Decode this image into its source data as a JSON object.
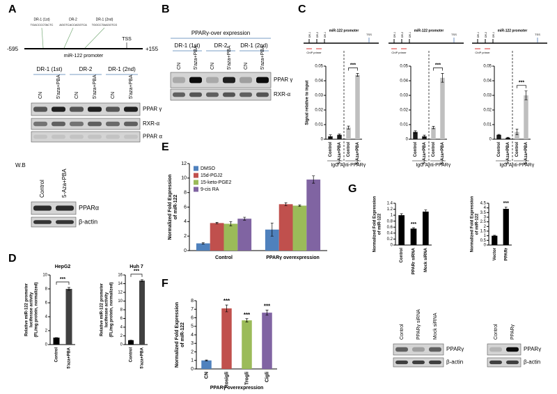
{
  "panel_labels": [
    "A",
    "B",
    "C",
    "D",
    "E",
    "F",
    "G"
  ],
  "promoter": {
    "label": "miR-122 promoter",
    "start": "-595",
    "end": "+155",
    "tss": "TSS",
    "sites": [
      {
        "name": "DR-1 (1st)",
        "seq": "TGACCCCTACTC"
      },
      {
        "name": "DR-2",
        "seq": "AGGTCACCAGGTCA"
      },
      {
        "name": "DR-1 (2nd)",
        "seq": "TGGCCTAAGGTCG"
      }
    ]
  },
  "blots": {
    "A": {
      "groups": [
        "DR-1 (1st)",
        "DR-2",
        "DR-1 (2nd)"
      ],
      "lanes": [
        "CN",
        "5'aza+PBA",
        "CN",
        "5'aza+PBA",
        "CN",
        "5'aza+PBA"
      ],
      "rows": [
        "PPAR γ",
        "RXR-α",
        "PPAR α"
      ]
    },
    "WB": {
      "label": "W.B",
      "lanes": [
        "Control",
        "5-Aza+PBA"
      ],
      "rows": [
        "PPARα",
        "β-actin"
      ]
    },
    "B": {
      "title": "PPARγ-over expression",
      "groups": [
        "DR-1 (1st)",
        "DR-2",
        "DR-1 (2nd)"
      ],
      "lanes": [
        "CN",
        "5'aza+PBA",
        "CN",
        "5'aza+PBA",
        "CN",
        "5'aza+PBA"
      ],
      "rows": [
        "PPAR γ",
        "RXR-α"
      ]
    },
    "G1": {
      "lanes": [
        "Control",
        "PPARγ siRNA",
        "Mock siRNA"
      ],
      "rows": [
        "PPARγ",
        "β-actin"
      ]
    },
    "G2": {
      "lanes": [
        "Control",
        "PPARγ"
      ],
      "rows": [
        "PPARγ",
        "β-actin"
      ]
    }
  },
  "chart_data": [
    {
      "type": "bar",
      "title": "miR-122 promoter",
      "sites": [
        "DR-1",
        "DR-2",
        "DR-1"
      ],
      "tss": "TSS",
      "primer": "ChIP primer",
      "ylabel": [
        "Signal relative to input"
      ],
      "categories": [
        "Control",
        "5-Aza+PBA",
        "Control",
        "5-Aza+PBA"
      ],
      "group_labels": [
        "IgG",
        "Anti-PPARγ"
      ],
      "series": [
        {
          "colors": [
            "#1a1a1a",
            "#1a1a1a",
            "#bfbfbf",
            "#bfbfbf"
          ],
          "values": [
            0.002,
            0.003,
            0.008,
            0.044
          ],
          "errors": [
            0.001,
            0.0005,
            0.001,
            0.001
          ]
        }
      ],
      "significance": [
        null,
        null,
        null,
        "***"
      ],
      "ylim": [
        0,
        0.05
      ],
      "yticks": [
        0,
        0.01,
        0.02,
        0.03,
        0.04,
        0.05
      ]
    },
    {
      "type": "bar",
      "title": "miR-122 promoter",
      "sites": [
        "DR-1",
        "DR-2",
        "DR-1"
      ],
      "tss": "TSS",
      "primer": "ChIP primer",
      "categories": [
        "Control",
        "5-Aza+PBA",
        "Control",
        "5-Aza+PBA"
      ],
      "group_labels": [
        "IgG",
        "Anti-PPARγ"
      ],
      "series": [
        {
          "colors": [
            "#1a1a1a",
            "#1a1a1a",
            "#bfbfbf",
            "#bfbfbf"
          ],
          "values": [
            0.005,
            0.002,
            0.008,
            0.042
          ],
          "errors": [
            0.0008,
            0.0008,
            0.0008,
            0.003
          ]
        }
      ],
      "significance": [
        null,
        null,
        null,
        "***"
      ],
      "ylim": [
        0,
        0.05
      ],
      "yticks": [
        0,
        0.01,
        0.02,
        0.03,
        0.04,
        0.05
      ]
    },
    {
      "type": "bar",
      "title": "miR-122 promoter",
      "sites": [
        "DR-1",
        "DR-2",
        "DR-1"
      ],
      "tss": "TSS",
      "primer": "ChIP primer",
      "categories": [
        "Control",
        "5-Aza+PBA",
        "Control",
        "5-Aza+PBA"
      ],
      "group_labels": [
        "IgG",
        "Anti-PPARγ"
      ],
      "series": [
        {
          "colors": [
            "#1a1a1a",
            "#1a1a1a",
            "#bfbfbf",
            "#bfbfbf"
          ],
          "values": [
            0.003,
            0.001,
            0.005,
            0.03
          ],
          "errors": [
            0.0003,
            0.0003,
            0.002,
            0.003
          ]
        }
      ],
      "significance": [
        null,
        null,
        null,
        "***"
      ],
      "ylim": [
        0,
        0.05
      ],
      "yticks": [
        0,
        0.01,
        0.02,
        0.03,
        0.04,
        0.05
      ]
    },
    {
      "type": "bar",
      "title": "HepG2",
      "ylabel": [
        "Relative miR-122 promoter",
        "luciferase activity",
        "(FL/mg protein, normalized)"
      ],
      "categories": [
        "Control",
        "5'aza+PBA"
      ],
      "series": [
        {
          "colors": [
            "#000000",
            "#404040"
          ],
          "values": [
            1,
            8
          ],
          "errors": [
            0,
            0.2
          ]
        }
      ],
      "significance": [
        null,
        "***"
      ],
      "ylim": [
        0,
        10
      ],
      "yticks": [
        0,
        2,
        4,
        6,
        8,
        10
      ]
    },
    {
      "type": "bar",
      "title": "Huh 7",
      "ylabel": [
        "Relative miR-122 promoter",
        "luciferase activity",
        "(FL/mg protein, normalized)"
      ],
      "categories": [
        "Control",
        "5'aza+PBA"
      ],
      "series": [
        {
          "colors": [
            "#000000",
            "#404040"
          ],
          "values": [
            1,
            14.7
          ],
          "errors": [
            0,
            0.2
          ]
        }
      ],
      "significance": [
        null,
        "***"
      ],
      "ylim": [
        0,
        16
      ],
      "yticks": [
        0,
        2,
        4,
        6,
        8,
        10,
        12,
        14,
        16
      ]
    },
    {
      "type": "bar",
      "ylabel": [
        "Normalized Fold Expression",
        "of miR-122"
      ],
      "categories": [
        "Control",
        "PPARγ overexpression"
      ],
      "series": [
        {
          "name": "DMSO",
          "color": "#4f81bd",
          "values": [
            1,
            2.9
          ],
          "errors": [
            0.1,
            0.9
          ]
        },
        {
          "name": "15d-PGJ2",
          "color": "#c0504d",
          "values": [
            3.8,
            6.4
          ],
          "errors": [
            0.1,
            0.2
          ]
        },
        {
          "name": "15-keto-PGE2",
          "color": "#9bbb59",
          "values": [
            3.7,
            6.2
          ],
          "errors": [
            0.3,
            0.1
          ]
        },
        {
          "name": "9-cis RA",
          "color": "#8064a2",
          "values": [
            4.4,
            9.8
          ],
          "errors": [
            0.2,
            0.5
          ]
        }
      ],
      "ylim": [
        0,
        12
      ],
      "yticks": [
        0,
        2,
        4,
        6,
        8,
        10,
        12
      ]
    },
    {
      "type": "bar",
      "ylabel": [
        "Normalized Fold Expression",
        "of miR-122"
      ],
      "xlabel": "PPARγ overexpression",
      "categories": [
        "CN",
        "Rosigli",
        "Trogli",
        "Cigli"
      ],
      "series": [
        {
          "colors": [
            "#4f81bd",
            "#c0504d",
            "#9bbb59",
            "#8064a2"
          ],
          "values": [
            1,
            7.1,
            5.7,
            6.6
          ],
          "errors": [
            0.05,
            0.4,
            0.2,
            0.3
          ]
        }
      ],
      "significance": [
        null,
        "***",
        "***",
        "***"
      ],
      "ylim": [
        0,
        8
      ],
      "yticks": [
        0,
        1,
        2,
        3,
        4,
        5,
        6,
        7,
        8
      ]
    },
    {
      "type": "bar",
      "ylabel": [
        "Normalized Fold Expression",
        "of miR-122"
      ],
      "categories": [
        "Control",
        "PPARr siRNA",
        "Mock siRNA"
      ],
      "series": [
        {
          "color": "#000000",
          "values": [
            1,
            0.55,
            1.12
          ],
          "errors": [
            0.05,
            0.03,
            0.06
          ]
        }
      ],
      "significance": [
        null,
        "***",
        null
      ],
      "ylim": [
        0,
        1.4
      ],
      "yticks": [
        0,
        0.2,
        0.4,
        0.6,
        0.8,
        1,
        1.2,
        1.4
      ]
    },
    {
      "type": "bar",
      "ylabel": [
        "Normalized Fold Expression",
        "of miR-122"
      ],
      "categories": [
        "Vector",
        "PPARr"
      ],
      "series": [
        {
          "color": "#000000",
          "values": [
            1,
            3.9
          ],
          "errors": [
            0.05,
            0.2
          ]
        }
      ],
      "significance": [
        null,
        "***"
      ],
      "ylim": [
        0,
        4.5
      ],
      "yticks": [
        0,
        0.5,
        1,
        1.5,
        2,
        2.5,
        3,
        3.5,
        4,
        4.5
      ]
    }
  ]
}
